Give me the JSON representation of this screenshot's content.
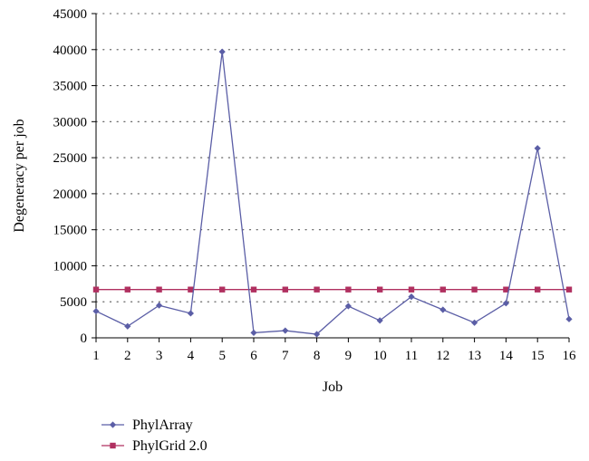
{
  "chart_data": {
    "type": "line",
    "title": "",
    "xlabel": "Job",
    "ylabel": "Degeneracy per job",
    "x": [
      1,
      2,
      3,
      4,
      5,
      6,
      7,
      8,
      9,
      10,
      11,
      12,
      13,
      14,
      15,
      16
    ],
    "xlim": [
      1,
      16
    ],
    "ylim": [
      0,
      45000
    ],
    "yticks": [
      0,
      5000,
      10000,
      15000,
      20000,
      25000,
      30000,
      35000,
      40000,
      45000
    ],
    "grid": "horizontal dotted",
    "legend_position": "bottom",
    "series": [
      {
        "name": "PhylArray",
        "color": "#5b5ea6",
        "marker": "diamond",
        "values": [
          3700,
          1600,
          4500,
          3400,
          39700,
          700,
          1000,
          500,
          4400,
          2400,
          5700,
          3900,
          2100,
          4800,
          26300,
          2600
        ]
      },
      {
        "name": "PhylGrid 2.0",
        "color": "#b03060",
        "marker": "square",
        "values": [
          6700,
          6700,
          6700,
          6700,
          6700,
          6700,
          6700,
          6700,
          6700,
          6700,
          6700,
          6700,
          6700,
          6700,
          6700,
          6700
        ]
      }
    ]
  }
}
